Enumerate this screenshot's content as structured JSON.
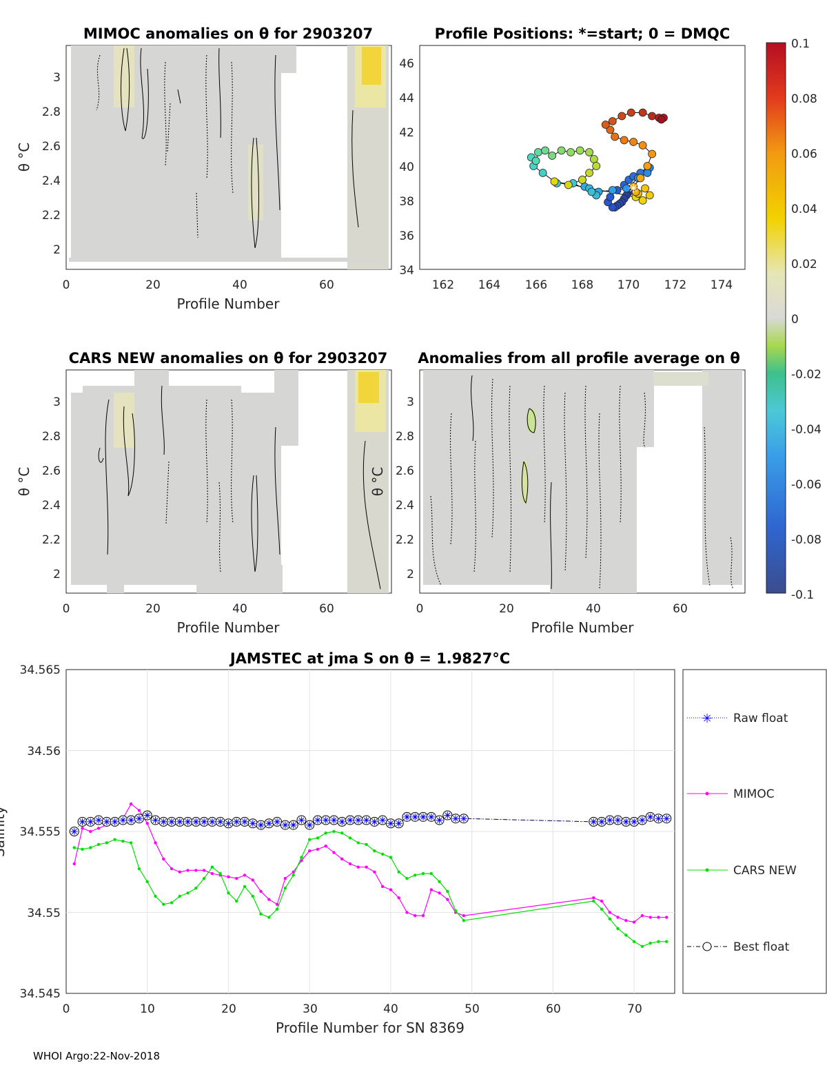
{
  "footer": "WHOI Argo:22-Nov-2018",
  "colorbar": {
    "ticks": [
      "0.1",
      "0.08",
      "0.06",
      "0.04",
      "0.02",
      "0",
      "-0.02",
      "-0.04",
      "-0.06",
      "-0.08",
      "-0.1"
    ]
  },
  "panels": {
    "mimoc": {
      "title": "MIMOC anomalies on θ  for 2903207",
      "xlabel": "Profile Number",
      "ylabel": "θ °C",
      "xticks": [
        "0",
        "20",
        "40",
        "60"
      ],
      "yticks": [
        "3",
        "2.8",
        "2.6",
        "2.4",
        "2.2",
        "2"
      ]
    },
    "positions": {
      "title": "Profile Positions: *=start; 0 = DMQC",
      "xticks": [
        "162",
        "164",
        "166",
        "168",
        "170",
        "172",
        "174"
      ],
      "yticks": [
        "46",
        "44",
        "42",
        "40",
        "38",
        "36",
        "34"
      ]
    },
    "cars": {
      "title": "CARS NEW anomalies on θ for 2903207",
      "xlabel": "Profile Number",
      "ylabel": "θ °C",
      "xticks": [
        "0",
        "20",
        "40",
        "60"
      ],
      "yticks": [
        "3",
        "2.8",
        "2.6",
        "2.4",
        "2.2",
        "2"
      ]
    },
    "allavg": {
      "title": "Anomalies from all profile average on θ",
      "xlabel": "Profile Number",
      "ylabel": "θ °C",
      "xticks": [
        "0",
        "20",
        "40",
        "60"
      ],
      "yticks": [
        "3",
        "2.8",
        "2.6",
        "2.4",
        "2.2",
        "2"
      ]
    },
    "jamstec": {
      "title": "JAMSTEC at jma S on θ = 1.9827°C",
      "xlabel": "Profile Number for SN 8369",
      "ylabel": "Salinity",
      "xticks": [
        "0",
        "10",
        "20",
        "30",
        "40",
        "50",
        "60",
        "70"
      ],
      "yticks": [
        "34.565",
        "34.56",
        "34.555",
        "34.55",
        "34.545"
      ],
      "legend": [
        "Raw float",
        "MIMOC",
        "CARS NEW",
        "Best float"
      ]
    }
  },
  "chart_data": [
    {
      "type": "scatter",
      "name": "Profile Positions",
      "xlim": [
        161,
        175
      ],
      "ylim": [
        34,
        47
      ],
      "start": [
        170.2,
        38.7
      ],
      "lon": [
        170.2,
        170.0,
        169.9,
        169.8,
        169.7,
        169.6,
        169.5,
        169.4,
        169.3,
        169.1,
        169.2,
        169.5,
        169.8,
        170.0,
        170.2,
        170.5,
        170.8,
        170.9,
        170.8,
        170.4,
        169.9,
        169.3,
        168.7,
        168.1,
        168.0,
        168.3,
        168.6,
        168.4,
        167.6,
        166.9,
        166.3,
        165.9,
        165.8,
        166.0,
        166.1,
        166.4,
        166.7,
        167.1,
        167.5,
        167.9,
        168.3,
        168.5,
        168.6,
        168.3,
        168.0,
        167.4,
        166.8,
        170.3,
        170.6,
        170.9,
        170.7,
        170.4,
        170.3,
        170.2,
        170.5,
        170.8,
        171.0,
        170.6,
        170.2,
        169.8,
        169.4,
        169.2,
        169.0,
        169.3,
        169.7,
        170.1,
        170.6,
        171.0,
        171.3,
        171.5,
        171.4
      ],
      "lat": [
        38.7,
        38.5,
        38.3,
        38.1,
        37.9,
        37.8,
        37.7,
        37.6,
        37.6,
        37.9,
        38.2,
        38.6,
        38.9,
        39.2,
        39.4,
        39.6,
        39.7,
        39.9,
        39.6,
        39.3,
        38.7,
        38.6,
        38.5,
        38.8,
        39.2,
        38.7,
        38.3,
        38.5,
        39.0,
        39.0,
        39.6,
        40.0,
        40.5,
        40.3,
        40.8,
        40.9,
        40.6,
        40.9,
        40.8,
        40.9,
        40.8,
        40.4,
        40.0,
        39.6,
        39.2,
        38.9,
        39.1,
        38.2,
        38.0,
        38.3,
        38.7,
        38.4,
        38.5,
        38.8,
        39.3,
        40.0,
        40.7,
        41.2,
        41.4,
        41.5,
        41.7,
        42.1,
        42.4,
        42.6,
        42.9,
        43.1,
        43.1,
        42.9,
        42.8,
        42.8,
        42.7
      ],
      "lat_note": "last points at 42.7"
    },
    {
      "type": "line",
      "name": "JAMSTEC salinity on theta",
      "title": "JAMSTEC at jma S on θ = 1.9827°C",
      "xlabel": "Profile Number for SN 8369",
      "ylabel": "Salinity",
      "xlim": [
        0,
        75
      ],
      "ylim": [
        34.545,
        34.565
      ],
      "x": [
        1,
        2,
        3,
        4,
        5,
        6,
        7,
        8,
        9,
        10,
        11,
        12,
        13,
        14,
        15,
        16,
        17,
        18,
        19,
        20,
        21,
        22,
        23,
        24,
        25,
        26,
        27,
        28,
        29,
        30,
        31,
        32,
        33,
        34,
        35,
        36,
        37,
        38,
        39,
        40,
        41,
        42,
        43,
        44,
        45,
        46,
        47,
        48,
        49,
        65,
        66,
        67,
        68,
        69,
        70,
        71,
        72,
        73,
        74
      ],
      "series": [
        {
          "name": "Raw float",
          "color": "#0000ff",
          "values": [
            34.555,
            34.5556,
            34.5556,
            34.5557,
            34.5556,
            34.5556,
            34.5557,
            34.5557,
            34.5558,
            34.556,
            34.5557,
            34.5556,
            34.5556,
            34.5556,
            34.5556,
            34.5556,
            34.5556,
            34.5556,
            34.5556,
            34.5555,
            34.5556,
            34.5556,
            34.5555,
            34.5554,
            34.5555,
            34.5556,
            34.5554,
            34.5554,
            34.5557,
            34.5554,
            34.5557,
            34.5557,
            34.5557,
            34.5556,
            34.5557,
            34.5557,
            34.5557,
            34.5556,
            34.5557,
            34.5555,
            34.5555,
            34.5559,
            34.5559,
            34.5559,
            34.5559,
            34.5557,
            34.556,
            34.5558,
            34.5558,
            34.5556,
            34.5556,
            34.5557,
            34.5557,
            34.5556,
            34.5556,
            34.5557,
            34.5559,
            34.5558,
            34.5558
          ]
        },
        {
          "name": "MIMOC",
          "color": "#ff00ff",
          "values": [
            34.553,
            34.5552,
            34.555,
            34.5552,
            34.5554,
            34.5556,
            34.5558,
            34.5567,
            34.5563,
            34.5555,
            34.5543,
            34.5533,
            34.5527,
            34.5525,
            34.5526,
            34.5526,
            34.5526,
            34.5524,
            34.5523,
            34.5522,
            34.5521,
            34.5523,
            34.552,
            34.5513,
            34.5508,
            34.5505,
            34.5521,
            34.5525,
            34.5532,
            34.5538,
            34.5539,
            34.5541,
            34.5537,
            34.5533,
            34.553,
            34.5528,
            34.5528,
            34.5525,
            34.5516,
            34.5514,
            34.5509,
            34.55,
            34.5498,
            34.5498,
            34.5514,
            34.5512,
            34.5508,
            34.55,
            34.5498,
            34.5509,
            34.5507,
            34.55,
            34.5497,
            34.5495,
            34.5494,
            34.5498,
            34.5497,
            34.5497,
            34.5497
          ]
        },
        {
          "name": "CARS NEW",
          "color": "#00e000",
          "values": [
            34.554,
            34.5539,
            34.554,
            34.5542,
            34.5543,
            34.5545,
            34.5544,
            34.5543,
            34.5527,
            34.5519,
            34.551,
            34.5505,
            34.5506,
            34.551,
            34.5512,
            34.5515,
            34.5521,
            34.5528,
            34.5524,
            34.5512,
            34.5507,
            34.5516,
            34.551,
            34.5499,
            34.5497,
            34.5502,
            34.5515,
            34.5523,
            34.5534,
            34.5545,
            34.5546,
            34.5549,
            34.555,
            34.5549,
            34.5546,
            34.5543,
            34.5542,
            34.5538,
            34.5536,
            34.5534,
            34.5525,
            34.5521,
            34.5523,
            34.5524,
            34.5524,
            34.5519,
            34.5513,
            34.5501,
            34.5495,
            34.5507,
            34.5502,
            34.5496,
            34.549,
            34.5486,
            34.5482,
            34.5479,
            34.5481,
            34.5482,
            34.5482
          ]
        },
        {
          "name": "Best float",
          "color": "#000000",
          "values": [
            34.555,
            34.5556,
            34.5556,
            34.5557,
            34.5556,
            34.5556,
            34.5557,
            34.5557,
            34.5558,
            34.556,
            34.5557,
            34.5556,
            34.5556,
            34.5556,
            34.5556,
            34.5556,
            34.5556,
            34.5556,
            34.5556,
            34.5555,
            34.5556,
            34.5556,
            34.5555,
            34.5554,
            34.5555,
            34.5556,
            34.5554,
            34.5554,
            34.5557,
            34.5554,
            34.5557,
            34.5557,
            34.5557,
            34.5556,
            34.5557,
            34.5557,
            34.5557,
            34.5556,
            34.5557,
            34.5555,
            34.5555,
            34.5559,
            34.5559,
            34.5559,
            34.5559,
            34.5557,
            34.556,
            34.5558,
            34.5558,
            34.5556,
            34.5556,
            34.5557,
            34.5557,
            34.5556,
            34.5556,
            34.5557,
            34.5559,
            34.5558,
            34.5558
          ]
        }
      ]
    }
  ]
}
